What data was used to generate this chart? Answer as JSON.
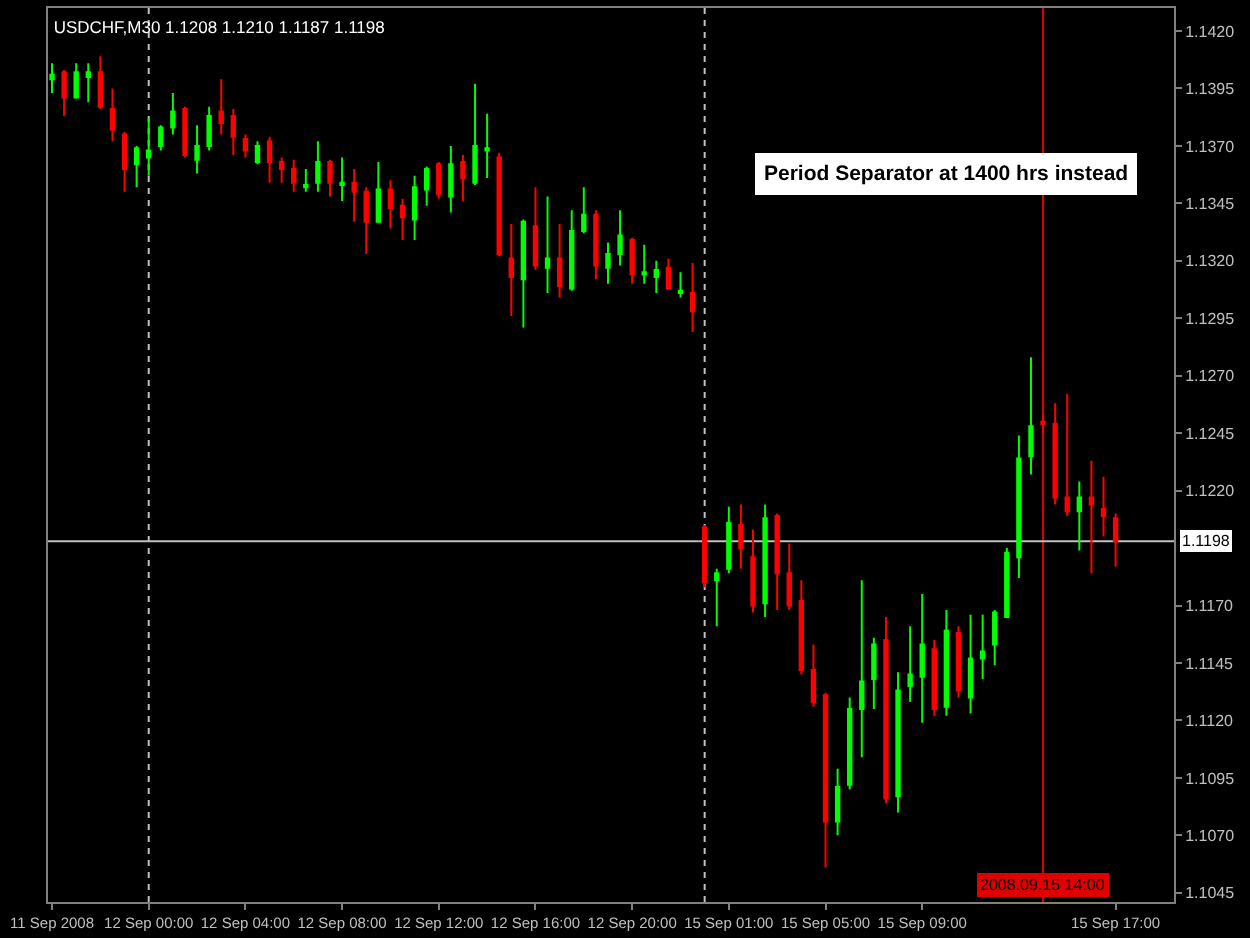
{
  "chart_data": [
    {
      "type": "candlestick",
      "title": "USDCHF,M30 1.1208 1.1210 1.1187 1.1198",
      "x": [
        "2008-09-11T20:00",
        "2008-09-11T20:30",
        "2008-09-11T21:00",
        "2008-09-11T21:30",
        "2008-09-11T22:00",
        "2008-09-11T22:30",
        "2008-09-11T23:00",
        "2008-09-11T23:30",
        "2008-09-12T00:00",
        "2008-09-12T00:30",
        "2008-09-12T01:00",
        "2008-09-12T01:30",
        "2008-09-12T02:00",
        "2008-09-12T02:30",
        "2008-09-12T03:00",
        "2008-09-12T03:30",
        "2008-09-12T04:00",
        "2008-09-12T04:30",
        "2008-09-12T05:00",
        "2008-09-12T05:30",
        "2008-09-12T06:00",
        "2008-09-12T06:30",
        "2008-09-12T07:00",
        "2008-09-12T07:30",
        "2008-09-12T08:00",
        "2008-09-12T08:30",
        "2008-09-12T09:00",
        "2008-09-12T09:30",
        "2008-09-12T10:00",
        "2008-09-12T10:30",
        "2008-09-12T11:00",
        "2008-09-12T11:30",
        "2008-09-12T12:00",
        "2008-09-12T12:30",
        "2008-09-12T13:00",
        "2008-09-12T13:30",
        "2008-09-12T14:00",
        "2008-09-12T14:30",
        "2008-09-12T15:00",
        "2008-09-12T15:30",
        "2008-09-12T16:00",
        "2008-09-12T16:30",
        "2008-09-12T17:00",
        "2008-09-12T17:30",
        "2008-09-12T18:00",
        "2008-09-12T18:30",
        "2008-09-12T19:00",
        "2008-09-12T19:30",
        "2008-09-12T20:00",
        "2008-09-12T20:30",
        "2008-09-12T21:00",
        "2008-09-12T21:30",
        "2008-09-12T22:00",
        "2008-09-12T22:30"
      ],
      "ohlc": [
        [
          1.1399,
          1.1406,
          1.1393,
          1.1401
        ],
        [
          1.1402,
          1.1403,
          1.1383,
          1.1391
        ],
        [
          1.1391,
          1.1406,
          1.1391,
          1.1402
        ],
        [
          1.14,
          1.1406,
          1.1389,
          1.1402
        ],
        [
          1.1402,
          1.1409,
          1.1386,
          1.1387
        ],
        [
          1.1386,
          1.1395,
          1.1372,
          1.1377
        ],
        [
          1.1375,
          1.1376,
          1.135,
          1.136
        ],
        [
          1.1362,
          1.137,
          1.1352,
          1.1369
        ],
        [
          1.1365,
          1.1382,
          1.1357,
          1.1368
        ],
        [
          1.137,
          1.1379,
          1.1368,
          1.1378
        ],
        [
          1.1378,
          1.1393,
          1.1375,
          1.1385
        ],
        [
          1.1386,
          1.1387,
          1.1365,
          1.1366
        ],
        [
          1.1364,
          1.1379,
          1.1358,
          1.137
        ],
        [
          1.137,
          1.1387,
          1.1368,
          1.1383
        ],
        [
          1.1385,
          1.1399,
          1.1375,
          1.138
        ],
        [
          1.1383,
          1.1386,
          1.1366,
          1.1374
        ],
        [
          1.1373,
          1.1375,
          1.1365,
          1.1368
        ],
        [
          1.1363,
          1.1372,
          1.1362,
          1.137
        ],
        [
          1.1372,
          1.1374,
          1.1354,
          1.1363
        ],
        [
          1.1363,
          1.1365,
          1.1354,
          1.136
        ],
        [
          1.136,
          1.1364,
          1.135,
          1.1354
        ],
        [
          1.1352,
          1.136,
          1.135,
          1.1353
        ],
        [
          1.1354,
          1.1372,
          1.135,
          1.1363
        ],
        [
          1.1363,
          1.1364,
          1.1348,
          1.1354
        ],
        [
          1.1353,
          1.1365,
          1.1346,
          1.1354
        ],
        [
          1.1354,
          1.136,
          1.1337,
          1.135
        ],
        [
          1.135,
          1.1352,
          1.1323,
          1.1337
        ],
        [
          1.1337,
          1.1363,
          1.1337,
          1.1351
        ],
        [
          1.1351,
          1.1355,
          1.1334,
          1.1343
        ],
        [
          1.1344,
          1.1347,
          1.1329,
          1.1339
        ],
        [
          1.1338,
          1.1357,
          1.1329,
          1.1352
        ],
        [
          1.1351,
          1.1361,
          1.1344,
          1.136
        ],
        [
          1.1362,
          1.1363,
          1.1347,
          1.1349
        ],
        [
          1.1348,
          1.137,
          1.1341,
          1.1362
        ],
        [
          1.1363,
          1.1366,
          1.1346,
          1.1356
        ],
        [
          1.1354,
          1.1397,
          1.1353,
          1.137
        ],
        [
          1.1368,
          1.1384,
          1.1356,
          1.1369
        ],
        [
          1.1365,
          1.1367,
          1.1322,
          1.1323
        ],
        [
          1.1321,
          1.1336,
          1.1296,
          1.1313
        ],
        [
          1.1312,
          1.1338,
          1.1291,
          1.1337
        ],
        [
          1.1335,
          1.1352,
          1.1316,
          1.1318
        ],
        [
          1.1317,
          1.1348,
          1.1306,
          1.1321
        ],
        [
          1.1321,
          1.1336,
          1.1304,
          1.1309
        ],
        [
          1.1308,
          1.1342,
          1.1307,
          1.1333
        ],
        [
          1.1333,
          1.1352,
          1.1332,
          1.134
        ],
        [
          1.134,
          1.1342,
          1.1312,
          1.1318
        ],
        [
          1.1317,
          1.1328,
          1.131,
          1.1323
        ],
        [
          1.1323,
          1.1342,
          1.1318,
          1.1331
        ],
        [
          1.1329,
          1.133,
          1.131,
          1.1314
        ],
        [
          1.1314,
          1.1327,
          1.131,
          1.1315
        ],
        [
          1.1313,
          1.132,
          1.1306,
          1.1316
        ],
        [
          1.1317,
          1.1321,
          1.1308,
          1.1308
        ],
        [
          1.1306,
          1.1315,
          1.1304,
          1.1307
        ],
        [
          1.1306,
          1.1319,
          1.1289,
          1.1298
        ]
      ],
      "colors": [
        "#00ff00",
        "#ff0000",
        "#00ff00",
        "#00ff00",
        "#ff0000",
        "#ff0000",
        "#ff0000",
        "#00ff00",
        "#00ff00",
        "#00ff00",
        "#00ff00",
        "#ff0000",
        "#00ff00",
        "#00ff00",
        "#ff0000",
        "#ff0000",
        "#ff0000",
        "#00ff00",
        "#ff0000",
        "#ff0000",
        "#ff0000",
        "#00ff00",
        "#00ff00",
        "#ff0000",
        "#00ff00",
        "#ff0000",
        "#ff0000",
        "#00ff00",
        "#ff0000",
        "#ff0000",
        "#00ff00",
        "#00ff00",
        "#ff0000",
        "#00ff00",
        "#ff0000",
        "#00ff00",
        "#00ff00",
        "#ff0000",
        "#ff0000",
        "#00ff00",
        "#ff0000",
        "#00ff00",
        "#ff0000",
        "#00ff00",
        "#00ff00",
        "#ff0000",
        "#00ff00",
        "#00ff00",
        "#ff0000",
        "#00ff00",
        "#00ff00",
        "#ff0000",
        "#00ff00",
        "#ff0000"
      ],
      "xlim": [
        "2008-09-11T19:50",
        "2008-09-12T22:45"
      ],
      "xticks": [
        {
          "value": "2008-09-11T20:00",
          "label": "11 Sep 2008"
        },
        {
          "value": "2008-09-12T00:00",
          "label": "12 Sep 00:00"
        },
        {
          "value": "2008-09-12T04:00",
          "label": "12 Sep 04:00"
        },
        {
          "value": "2008-09-12T08:00",
          "label": "12 Sep 08:00"
        },
        {
          "value": "2008-09-12T12:00",
          "label": "12 Sep 12:00"
        },
        {
          "value": "2008-09-12T16:00",
          "label": "12 Sep 16:00"
        },
        {
          "value": "2008-09-12T20:00",
          "label": "12 Sep 20:00"
        }
      ],
      "ylim": [
        1.1041,
        1.143
      ],
      "tick_labels": "x",
      "ref_lines": [
        {
          "axis": "x",
          "value": "2008-09-12T00:00",
          "line_style": "dotted",
          "color": "#c0c0c0"
        },
        {
          "axis": "y",
          "value": 1.1198,
          "color": "#c0c0c0"
        }
      ]
    },
    {
      "type": "candlestick",
      "x": [
        "2008-09-15T00:00",
        "2008-09-15T00:30",
        "2008-09-15T01:00",
        "2008-09-15T01:30",
        "2008-09-15T02:00",
        "2008-09-15T02:30",
        "2008-09-15T03:00",
        "2008-09-15T03:30",
        "2008-09-15T04:00",
        "2008-09-15T04:30",
        "2008-09-15T05:00",
        "2008-09-15T05:30",
        "2008-09-15T06:00",
        "2008-09-15T06:30",
        "2008-09-15T07:00",
        "2008-09-15T07:30",
        "2008-09-15T08:00",
        "2008-09-15T08:30",
        "2008-09-15T09:00",
        "2008-09-15T09:30",
        "2008-09-15T10:00",
        "2008-09-15T10:30",
        "2008-09-15T11:00",
        "2008-09-15T11:30",
        "2008-09-15T12:00",
        "2008-09-15T12:30",
        "2008-09-15T13:00",
        "2008-09-15T13:30",
        "2008-09-15T14:00",
        "2008-09-15T14:30",
        "2008-09-15T15:00",
        "2008-09-15T15:30",
        "2008-09-15T16:00",
        "2008-09-15T16:30",
        "2008-09-15T17:00"
      ],
      "ohlc": [
        [
          1.1204,
          1.1205,
          1.1178,
          1.118
        ],
        [
          1.1181,
          1.1186,
          1.1161,
          1.1184
        ],
        [
          1.1186,
          1.1213,
          1.1184,
          1.1206
        ],
        [
          1.1205,
          1.1214,
          1.1186,
          1.1195
        ],
        [
          1.1191,
          1.1203,
          1.1167,
          1.117
        ],
        [
          1.1171,
          1.1214,
          1.1165,
          1.1208
        ],
        [
          1.1209,
          1.121,
          1.1168,
          1.1184
        ],
        [
          1.1184,
          1.1197,
          1.1168,
          1.117
        ],
        [
          1.1172,
          1.1181,
          1.114,
          1.1142
        ],
        [
          1.1142,
          1.1153,
          1.1126,
          1.1128
        ],
        [
          1.1131,
          1.1132,
          1.1056,
          1.1076
        ],
        [
          1.1076,
          1.1099,
          1.107,
          1.1091
        ],
        [
          1.1092,
          1.113,
          1.109,
          1.1125
        ],
        [
          1.1125,
          1.1181,
          1.1104,
          1.1137
        ],
        [
          1.1138,
          1.1156,
          1.1125,
          1.1153
        ],
        [
          1.1155,
          1.1165,
          1.1084,
          1.1086
        ],
        [
          1.1087,
          1.1141,
          1.108,
          1.1133
        ],
        [
          1.1135,
          1.1161,
          1.1128,
          1.114
        ],
        [
          1.1139,
          1.1175,
          1.1119,
          1.1153
        ],
        [
          1.1151,
          1.1155,
          1.1122,
          1.1125
        ],
        [
          1.1126,
          1.1168,
          1.1122,
          1.1159
        ],
        [
          1.1158,
          1.1161,
          1.113,
          1.1133
        ],
        [
          1.113,
          1.1166,
          1.1123,
          1.1147
        ],
        [
          1.1147,
          1.1166,
          1.1138,
          1.115
        ],
        [
          1.1153,
          1.1168,
          1.1144,
          1.1167
        ],
        [
          1.1165,
          1.1195,
          1.1165,
          1.1193
        ],
        [
          1.1191,
          1.1244,
          1.1182,
          1.1234
        ],
        [
          1.1235,
          1.1278,
          1.1227,
          1.1248
        ],
        [
          1.125,
          1.1253,
          1.1245,
          1.1249
        ],
        [
          1.1249,
          1.1258,
          1.1214,
          1.1217
        ],
        [
          1.1217,
          1.1262,
          1.1209,
          1.1211
        ],
        [
          1.1211,
          1.1224,
          1.1194,
          1.1217
        ],
        [
          1.1217,
          1.1233,
          1.1184,
          1.1214
        ],
        [
          1.1212,
          1.1226,
          1.12,
          1.1209
        ],
        [
          1.1208,
          1.121,
          1.1187,
          1.1198
        ]
      ],
      "colors": [
        "#ff0000",
        "#00ff00",
        "#00ff00",
        "#ff0000",
        "#ff0000",
        "#00ff00",
        "#ff0000",
        "#ff0000",
        "#ff0000",
        "#ff0000",
        "#ff0000",
        "#00ff00",
        "#00ff00",
        "#00ff00",
        "#00ff00",
        "#ff0000",
        "#00ff00",
        "#00ff00",
        "#00ff00",
        "#ff0000",
        "#00ff00",
        "#ff0000",
        "#00ff00",
        "#00ff00",
        "#00ff00",
        "#00ff00",
        "#00ff00",
        "#00ff00",
        "#ff0000",
        "#ff0000",
        "#ff0000",
        "#00ff00",
        "#ff0000",
        "#ff0000",
        "#ff0000"
      ],
      "xlim": [
        "2008-09-14T23:45",
        "2008-09-15T19:25"
      ],
      "xticks": [
        {
          "value": "2008-09-15T01:00",
          "label": "15 Sep 01:00"
        },
        {
          "value": "2008-09-15T05:00",
          "label": "15 Sep 05:00"
        },
        {
          "value": "2008-09-15T09:00",
          "label": "15 Sep 09:00"
        },
        {
          "value": "2008-09-15T17:00",
          "label": "15 Sep 17:00"
        }
      ],
      "ylim": [
        1.1041,
        1.143
      ],
      "yticks": [
        1.1045,
        {
          "value": 1.107,
          "label": "1.1070"
        },
        1.1095,
        {
          "value": 1.112,
          "label": "1.1120"
        },
        1.1145,
        {
          "value": 1.117,
          "label": "1.1170"
        },
        {
          "value": 1.122,
          "label": "1.1220"
        },
        1.1245,
        {
          "value": 1.127,
          "label": "1.1270"
        },
        1.1295,
        {
          "value": 1.132,
          "label": "1.1320"
        },
        1.1345,
        {
          "value": 1.137,
          "label": "1.1370"
        },
        1.1395,
        {
          "value": 1.142,
          "label": "1.1420"
        }
      ],
      "ref_lines": [
        {
          "axis": "x",
          "value": "2008-09-15T00:00",
          "line_style": "dotted",
          "color": "#c0c0c0"
        },
        {
          "axis": "x",
          "value": "2008-09-15T14:00",
          "label": "2008.09.15 14:00",
          "color": "#e00000"
        },
        {
          "axis": "y",
          "value": 1.1198,
          "label": "1.1198",
          "color": "#c0c0c0"
        }
      ],
      "annotations": [
        "Period Separator at 1400 hrs instead"
      ]
    }
  ]
}
